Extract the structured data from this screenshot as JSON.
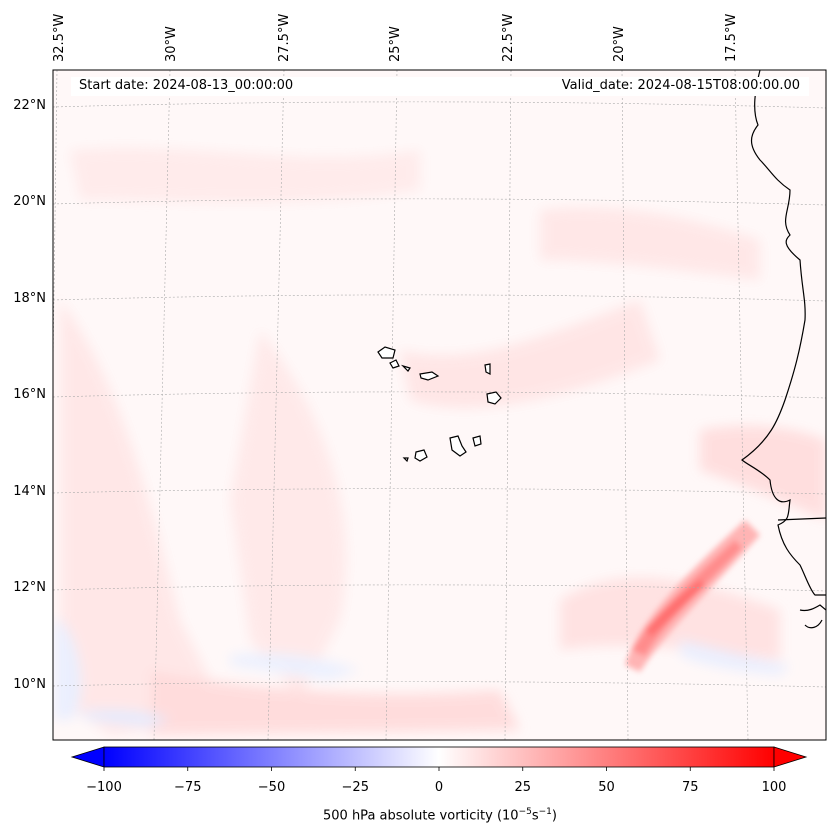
{
  "map": {
    "title_start": "Start date: 2024-08-13_00:00:00",
    "title_valid": "Valid_date: 2024-08-15T08:00:00.00",
    "longitude_labels": [
      "32.5°W",
      "30°W",
      "27.5°W",
      "25°W",
      "22.5°W",
      "20°W",
      "17.5°W"
    ],
    "latitude_labels": [
      "22°N",
      "20°N",
      "18°N",
      "16°N",
      "14°N",
      "12°N",
      "10°N"
    ],
    "field": "500 hPa absolute vorticity",
    "features": [
      "Cape Verde islands",
      "West African coastline",
      "Vorticity streak near 11-13°N, 19-17°W"
    ]
  },
  "colorbar": {
    "ticks": [
      "−100",
      "−75",
      "−50",
      "−25",
      "0",
      "25",
      "50",
      "75",
      "100"
    ],
    "tick_values": [
      -100,
      -75,
      -50,
      -25,
      0,
      25,
      50,
      75,
      100
    ],
    "range": [
      -100,
      100
    ],
    "label_text": "500 hPa absolute vorticity (10",
    "label_exp1": "−5",
    "label_mid": "s",
    "label_exp2": "−1",
    "label_end": ")",
    "colors": {
      "negative": "#0000ff",
      "zero": "#ffffff",
      "positive": "#ff0000"
    }
  }
}
